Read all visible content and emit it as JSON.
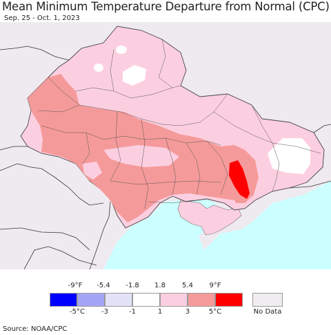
{
  "title": "Mean Minimum Temperature Departure from Normal (CPC)",
  "subtitle": "Sep. 25 - Oct. 1, 2023",
  "source": "Source: NOAA/CPC",
  "legend": {
    "fahrenheit_labels": [
      "-9°F",
      "-5.4",
      "-1.8",
      "1.8",
      "5.4",
      "9°F"
    ],
    "celsius_labels": [
      "-5°C",
      "-3",
      "-1",
      "1",
      "3",
      "5°C"
    ],
    "colors": [
      "#0000ff",
      "#a5a5f5",
      "#e2e2f8",
      "#ffffff",
      "#fccfe0",
      "#f59a9a",
      "#ff0000"
    ],
    "no_data_label": "No Data",
    "no_data_color": "#f0ecf0"
  },
  "map_colors": {
    "no_data": "#efeaef",
    "sea": "#ccffff",
    "light_pink": "#fccfe0",
    "salmon": "#f59a9a",
    "red": "#ff0000",
    "white": "#ffffff"
  }
}
